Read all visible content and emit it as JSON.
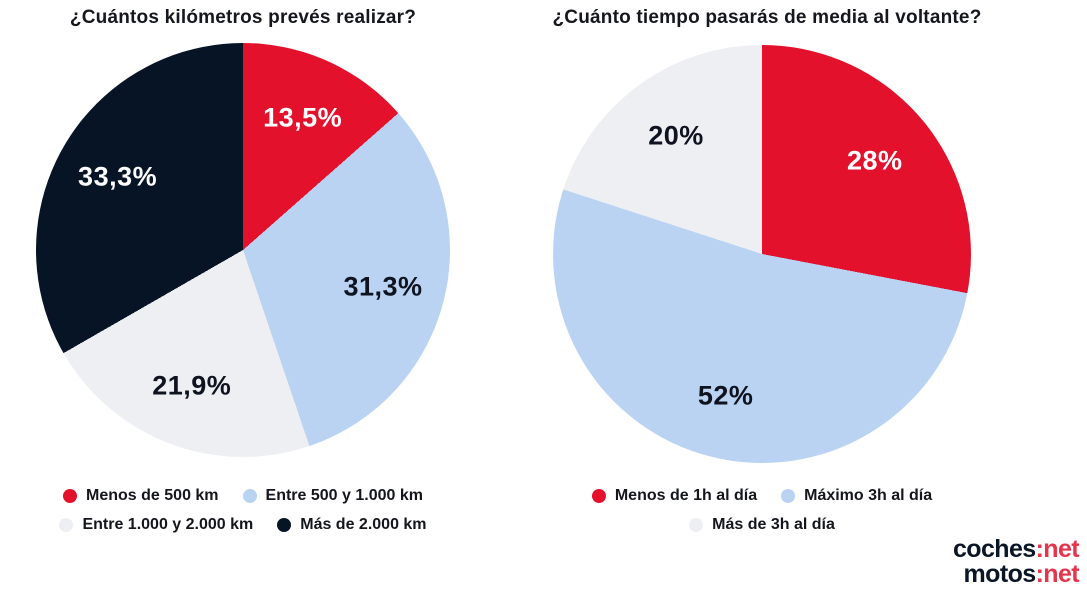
{
  "chart_data": [
    {
      "type": "pie",
      "title": "¿Cuántos kilómetros prevés realizar?",
      "labels": [
        "Menos de 500 km",
        "Entre 500 y 1.000 km",
        "Entre 1.000 y 2.000 km",
        "Más de 2.000 km"
      ],
      "values": [
        13.5,
        31.3,
        21.9,
        33.3
      ],
      "value_displays": [
        "13,5%",
        "31,3%",
        "21,9%",
        "33,3%"
      ],
      "colors": [
        "#e3112c",
        "#bad3f2",
        "#edeff3",
        "#071426"
      ],
      "label_text_colors": [
        "#ffffff",
        "#0f1320",
        "#0f1320",
        "#ffffff"
      ],
      "start_angle_deg": 0,
      "direction": "clockwise",
      "legend_position": "bottom"
    },
    {
      "type": "pie",
      "title": "¿Cuánto tiempo pasarás de media al voltante?",
      "labels": [
        "Menos de 1h al día",
        "Máximo 3h al día",
        "Más de 3h al día"
      ],
      "values": [
        28,
        52,
        20
      ],
      "value_displays": [
        "28%",
        "52%",
        "20%"
      ],
      "colors": [
        "#e3112c",
        "#bad3f2",
        "#edeff3"
      ],
      "label_text_colors": [
        "#ffffff",
        "#0f1320",
        "#0f1320"
      ],
      "start_angle_deg": 0,
      "direction": "clockwise",
      "legend_position": "bottom"
    }
  ],
  "logo": {
    "lines": [
      {
        "main": "coches",
        "accent": ":net"
      },
      {
        "main": "motos",
        "accent": ":net"
      }
    ],
    "main_color": "#0a1526",
    "accent_color": "#e5344b"
  }
}
